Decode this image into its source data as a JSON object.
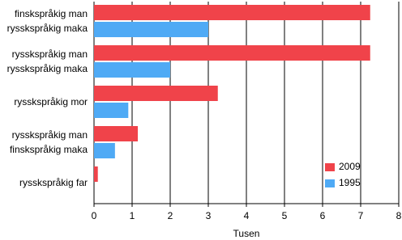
{
  "chart_data": {
    "type": "bar",
    "orientation": "horizontal",
    "categories": [
      [
        "finskspråkig man",
        "rysskspråkig maka"
      ],
      [
        "rysskspråkig man",
        "rysskspråkig maka"
      ],
      [
        "rysskspråkig mor"
      ],
      [
        "rysskspråkig man",
        "finskspråkig maka"
      ],
      [
        "rysskspråkig far"
      ]
    ],
    "series": [
      {
        "name": "2009",
        "color": "#f0434a",
        "values": [
          7.25,
          7.25,
          3.25,
          1.15,
          0.1
        ]
      },
      {
        "name": "1995",
        "color": "#4faaf5",
        "values": [
          3.0,
          2.0,
          0.9,
          0.55,
          0
        ]
      }
    ],
    "xlabel": "Tusen",
    "xlim": [
      0,
      8
    ],
    "xticks": [
      0,
      1,
      2,
      3,
      4,
      5,
      6,
      7,
      8
    ],
    "grid": true,
    "legend": "lower right"
  }
}
